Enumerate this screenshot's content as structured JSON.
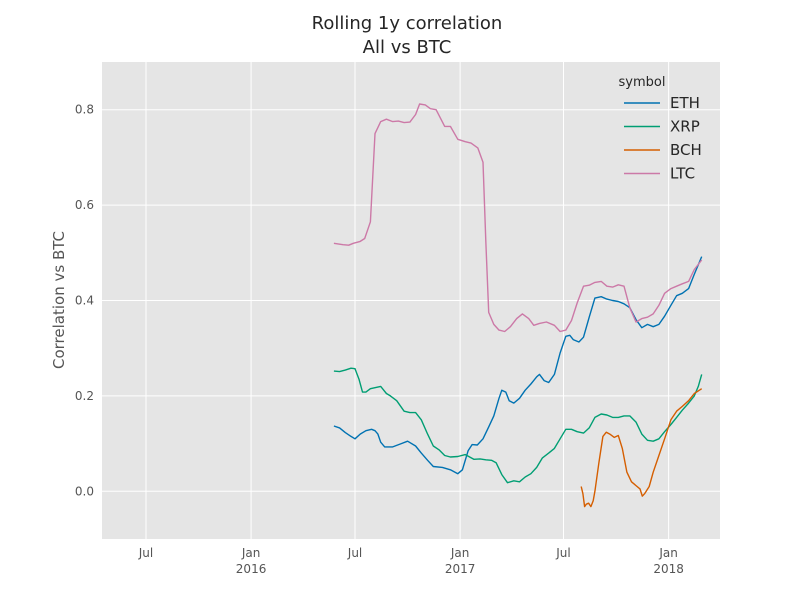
{
  "chart_data": {
    "type": "line",
    "title": "Rolling 1y correlation",
    "subtitle": "All vs BTC",
    "ylabel": "Correlation vs BTC",
    "xlabel": "",
    "xlim": [
      "2015-04-15",
      "2018-04-01"
    ],
    "ylim": [
      -0.1,
      0.9
    ],
    "grid": true,
    "yticks": [
      0.0,
      0.2,
      0.4,
      0.6,
      0.8
    ],
    "ytick_labels": [
      "0.0",
      "0.2",
      "0.4",
      "0.6",
      "0.8"
    ],
    "xticks": [
      {
        "date": "2015-07-01",
        "label": "Jul",
        "sublabel": ""
      },
      {
        "date": "2016-01-01",
        "label": "Jan",
        "sublabel": "2016"
      },
      {
        "date": "2016-07-01",
        "label": "Jul",
        "sublabel": ""
      },
      {
        "date": "2017-01-01",
        "label": "Jan",
        "sublabel": "2017"
      },
      {
        "date": "2017-07-01",
        "label": "Jul",
        "sublabel": ""
      },
      {
        "date": "2018-01-01",
        "label": "Jan",
        "sublabel": "2018"
      }
    ],
    "legend": {
      "title": "symbol",
      "position": "top-right"
    },
    "series": [
      {
        "name": "ETH",
        "color": "#0072b2",
        "points": [
          [
            "2016-05-25",
            0.137
          ],
          [
            "2016-06-04",
            0.133
          ],
          [
            "2016-06-14",
            0.123
          ],
          [
            "2016-06-24",
            0.115
          ],
          [
            "2016-07-01",
            0.11
          ],
          [
            "2016-07-10",
            0.12
          ],
          [
            "2016-07-20",
            0.127
          ],
          [
            "2016-07-30",
            0.13
          ],
          [
            "2016-08-05",
            0.127
          ],
          [
            "2016-08-10",
            0.12
          ],
          [
            "2016-08-15",
            0.103
          ],
          [
            "2016-08-22",
            0.093
          ],
          [
            "2016-09-05",
            0.093
          ],
          [
            "2016-09-20",
            0.1
          ],
          [
            "2016-10-01",
            0.105
          ],
          [
            "2016-10-15",
            0.095
          ],
          [
            "2016-10-25",
            0.08
          ],
          [
            "2016-11-05",
            0.065
          ],
          [
            "2016-11-15",
            0.052
          ],
          [
            "2016-12-01",
            0.05
          ],
          [
            "2016-12-15",
            0.045
          ],
          [
            "2016-12-28",
            0.037
          ],
          [
            "2017-01-05",
            0.045
          ],
          [
            "2017-01-15",
            0.085
          ],
          [
            "2017-01-22",
            0.098
          ],
          [
            "2017-01-31",
            0.097
          ],
          [
            "2017-02-10",
            0.11
          ],
          [
            "2017-02-20",
            0.135
          ],
          [
            "2017-03-01",
            0.158
          ],
          [
            "2017-03-10",
            0.195
          ],
          [
            "2017-03-15",
            0.212
          ],
          [
            "2017-03-22",
            0.208
          ],
          [
            "2017-03-28",
            0.19
          ],
          [
            "2017-04-05",
            0.185
          ],
          [
            "2017-04-15",
            0.195
          ],
          [
            "2017-04-25",
            0.212
          ],
          [
            "2017-05-05",
            0.225
          ],
          [
            "2017-05-15",
            0.24
          ],
          [
            "2017-05-20",
            0.245
          ],
          [
            "2017-05-28",
            0.232
          ],
          [
            "2017-06-05",
            0.228
          ],
          [
            "2017-06-15",
            0.245
          ],
          [
            "2017-06-25",
            0.29
          ],
          [
            "2017-07-05",
            0.325
          ],
          [
            "2017-07-12",
            0.327
          ],
          [
            "2017-07-18",
            0.318
          ],
          [
            "2017-07-28",
            0.313
          ],
          [
            "2017-08-05",
            0.323
          ],
          [
            "2017-08-15",
            0.365
          ],
          [
            "2017-08-25",
            0.405
          ],
          [
            "2017-09-05",
            0.408
          ],
          [
            "2017-09-15",
            0.403
          ],
          [
            "2017-09-25",
            0.4
          ],
          [
            "2017-10-05",
            0.398
          ],
          [
            "2017-10-15",
            0.393
          ],
          [
            "2017-10-25",
            0.385
          ],
          [
            "2017-11-05",
            0.36
          ],
          [
            "2017-11-15",
            0.343
          ],
          [
            "2017-11-25",
            0.35
          ],
          [
            "2017-12-05",
            0.345
          ],
          [
            "2017-12-15",
            0.35
          ],
          [
            "2017-12-25",
            0.367
          ],
          [
            "2018-01-05",
            0.39
          ],
          [
            "2018-01-15",
            0.41
          ],
          [
            "2018-01-25",
            0.415
          ],
          [
            "2018-02-05",
            0.425
          ],
          [
            "2018-02-15",
            0.455
          ],
          [
            "2018-02-28",
            0.492
          ]
        ]
      },
      {
        "name": "XRP",
        "color": "#009e73",
        "points": [
          [
            "2016-05-25",
            0.252
          ],
          [
            "2016-06-04",
            0.251
          ],
          [
            "2016-06-14",
            0.254
          ],
          [
            "2016-06-24",
            0.258
          ],
          [
            "2016-07-01",
            0.257
          ],
          [
            "2016-07-08",
            0.235
          ],
          [
            "2016-07-14",
            0.208
          ],
          [
            "2016-07-20",
            0.208
          ],
          [
            "2016-07-28",
            0.215
          ],
          [
            "2016-08-08",
            0.218
          ],
          [
            "2016-08-15",
            0.22
          ],
          [
            "2016-08-25",
            0.205
          ],
          [
            "2016-09-01",
            0.2
          ],
          [
            "2016-09-12",
            0.19
          ],
          [
            "2016-09-25",
            0.168
          ],
          [
            "2016-10-05",
            0.165
          ],
          [
            "2016-10-15",
            0.165
          ],
          [
            "2016-10-25",
            0.15
          ],
          [
            "2016-11-05",
            0.12
          ],
          [
            "2016-11-15",
            0.095
          ],
          [
            "2016-11-25",
            0.087
          ],
          [
            "2016-12-05",
            0.075
          ],
          [
            "2016-12-15",
            0.072
          ],
          [
            "2016-12-28",
            0.073
          ],
          [
            "2017-01-10",
            0.077
          ],
          [
            "2017-01-25",
            0.067
          ],
          [
            "2017-02-05",
            0.068
          ],
          [
            "2017-02-15",
            0.066
          ],
          [
            "2017-02-25",
            0.065
          ],
          [
            "2017-03-05",
            0.06
          ],
          [
            "2017-03-15",
            0.035
          ],
          [
            "2017-03-25",
            0.018
          ],
          [
            "2017-04-05",
            0.022
          ],
          [
            "2017-04-15",
            0.02
          ],
          [
            "2017-04-25",
            0.03
          ],
          [
            "2017-05-05",
            0.037
          ],
          [
            "2017-05-15",
            0.05
          ],
          [
            "2017-05-25",
            0.07
          ],
          [
            "2017-06-05",
            0.08
          ],
          [
            "2017-06-15",
            0.09
          ],
          [
            "2017-06-25",
            0.11
          ],
          [
            "2017-07-05",
            0.13
          ],
          [
            "2017-07-15",
            0.13
          ],
          [
            "2017-07-25",
            0.125
          ],
          [
            "2017-08-05",
            0.122
          ],
          [
            "2017-08-15",
            0.133
          ],
          [
            "2017-08-25",
            0.155
          ],
          [
            "2017-09-05",
            0.162
          ],
          [
            "2017-09-15",
            0.16
          ],
          [
            "2017-09-25",
            0.155
          ],
          [
            "2017-10-05",
            0.155
          ],
          [
            "2017-10-15",
            0.158
          ],
          [
            "2017-10-25",
            0.158
          ],
          [
            "2017-11-05",
            0.145
          ],
          [
            "2017-11-15",
            0.12
          ],
          [
            "2017-11-25",
            0.107
          ],
          [
            "2017-12-05",
            0.105
          ],
          [
            "2017-12-15",
            0.11
          ],
          [
            "2017-12-25",
            0.125
          ],
          [
            "2018-01-05",
            0.14
          ],
          [
            "2018-01-15",
            0.155
          ],
          [
            "2018-01-25",
            0.17
          ],
          [
            "2018-02-05",
            0.185
          ],
          [
            "2018-02-15",
            0.2
          ],
          [
            "2018-02-22",
            0.22
          ],
          [
            "2018-02-28",
            0.245
          ]
        ]
      },
      {
        "name": "BCH",
        "color": "#d55e00",
        "points": [
          [
            "2017-08-01",
            0.01
          ],
          [
            "2017-08-04",
            -0.005
          ],
          [
            "2017-08-07",
            -0.032
          ],
          [
            "2017-08-10",
            -0.027
          ],
          [
            "2017-08-14",
            -0.025
          ],
          [
            "2017-08-18",
            -0.032
          ],
          [
            "2017-08-22",
            -0.02
          ],
          [
            "2017-08-25",
            0.0
          ],
          [
            "2017-09-01",
            0.06
          ],
          [
            "2017-09-08",
            0.115
          ],
          [
            "2017-09-14",
            0.124
          ],
          [
            "2017-09-20",
            0.12
          ],
          [
            "2017-09-28",
            0.113
          ],
          [
            "2017-10-05",
            0.117
          ],
          [
            "2017-10-12",
            0.09
          ],
          [
            "2017-10-20",
            0.04
          ],
          [
            "2017-10-28",
            0.02
          ],
          [
            "2017-11-05",
            0.012
          ],
          [
            "2017-11-12",
            0.005
          ],
          [
            "2017-11-16",
            -0.01
          ],
          [
            "2017-11-20",
            -0.005
          ],
          [
            "2017-11-28",
            0.01
          ],
          [
            "2017-12-05",
            0.04
          ],
          [
            "2017-12-15",
            0.075
          ],
          [
            "2017-12-25",
            0.11
          ],
          [
            "2018-01-05",
            0.15
          ],
          [
            "2018-01-15",
            0.168
          ],
          [
            "2018-01-25",
            0.178
          ],
          [
            "2018-02-05",
            0.19
          ],
          [
            "2018-02-15",
            0.205
          ],
          [
            "2018-02-28",
            0.215
          ]
        ]
      },
      {
        "name": "LTC",
        "color": "#cc79a7",
        "points": [
          [
            "2016-05-25",
            0.52
          ],
          [
            "2016-06-10",
            0.517
          ],
          [
            "2016-06-20",
            0.516
          ],
          [
            "2016-06-28",
            0.52
          ],
          [
            "2016-07-10",
            0.524
          ],
          [
            "2016-07-18",
            0.53
          ],
          [
            "2016-07-28",
            0.565
          ],
          [
            "2016-08-05",
            0.75
          ],
          [
            "2016-08-15",
            0.775
          ],
          [
            "2016-08-25",
            0.78
          ],
          [
            "2016-09-05",
            0.775
          ],
          [
            "2016-09-15",
            0.776
          ],
          [
            "2016-09-25",
            0.773
          ],
          [
            "2016-10-05",
            0.774
          ],
          [
            "2016-10-15",
            0.79
          ],
          [
            "2016-10-22",
            0.812
          ],
          [
            "2016-11-01",
            0.81
          ],
          [
            "2016-11-10",
            0.802
          ],
          [
            "2016-11-20",
            0.8
          ],
          [
            "2016-12-05",
            0.765
          ],
          [
            "2016-12-15",
            0.765
          ],
          [
            "2016-12-28",
            0.738
          ],
          [
            "2017-01-10",
            0.733
          ],
          [
            "2017-01-20",
            0.73
          ],
          [
            "2017-02-01",
            0.72
          ],
          [
            "2017-02-10",
            0.69
          ],
          [
            "2017-02-15",
            0.525
          ],
          [
            "2017-02-20",
            0.375
          ],
          [
            "2017-03-01",
            0.35
          ],
          [
            "2017-03-10",
            0.338
          ],
          [
            "2017-03-20",
            0.335
          ],
          [
            "2017-03-30",
            0.345
          ],
          [
            "2017-04-10",
            0.362
          ],
          [
            "2017-04-20",
            0.372
          ],
          [
            "2017-05-01",
            0.362
          ],
          [
            "2017-05-10",
            0.348
          ],
          [
            "2017-05-20",
            0.352
          ],
          [
            "2017-06-01",
            0.355
          ],
          [
            "2017-06-15",
            0.348
          ],
          [
            "2017-06-25",
            0.335
          ],
          [
            "2017-07-05",
            0.338
          ],
          [
            "2017-07-15",
            0.358
          ],
          [
            "2017-07-25",
            0.395
          ],
          [
            "2017-08-05",
            0.43
          ],
          [
            "2017-08-15",
            0.432
          ],
          [
            "2017-08-25",
            0.438
          ],
          [
            "2017-09-05",
            0.44
          ],
          [
            "2017-09-15",
            0.43
          ],
          [
            "2017-09-25",
            0.428
          ],
          [
            "2017-10-05",
            0.433
          ],
          [
            "2017-10-15",
            0.43
          ],
          [
            "2017-10-25",
            0.385
          ],
          [
            "2017-11-05",
            0.355
          ],
          [
            "2017-11-15",
            0.362
          ],
          [
            "2017-11-25",
            0.365
          ],
          [
            "2017-12-05",
            0.372
          ],
          [
            "2017-12-15",
            0.39
          ],
          [
            "2017-12-25",
            0.415
          ],
          [
            "2018-01-05",
            0.425
          ],
          [
            "2018-01-15",
            0.43
          ],
          [
            "2018-01-25",
            0.435
          ],
          [
            "2018-02-05",
            0.44
          ],
          [
            "2018-02-15",
            0.465
          ],
          [
            "2018-02-28",
            0.485
          ]
        ]
      }
    ]
  }
}
